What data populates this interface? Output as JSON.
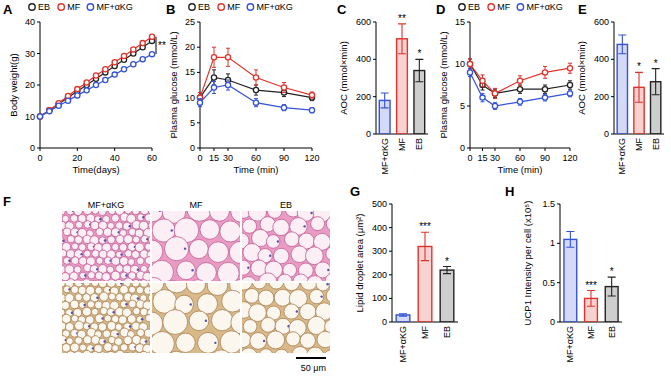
{
  "chart_data": [
    {
      "type": "line",
      "title": "A",
      "x_label": "Time(days)",
      "y_label": "Body weight(g)",
      "x": [
        0,
        5,
        10,
        15,
        20,
        25,
        30,
        35,
        40,
        45,
        50,
        55,
        60
      ],
      "series": [
        {
          "name": "EB",
          "color": "#222222",
          "marker": "circle",
          "values": [
            10,
            12,
            14,
            16,
            18,
            20,
            22,
            24,
            26,
            28,
            30,
            32,
            34
          ]
        },
        {
          "name": "MF",
          "color": "#e0332b",
          "marker": "circle",
          "values": [
            10,
            12,
            14.2,
            16.5,
            18.7,
            20.8,
            23,
            25,
            27.2,
            29.2,
            31.3,
            33.3,
            35.3
          ]
        },
        {
          "name": "MF+αKG",
          "color": "#3553d6",
          "marker": "circle",
          "values": [
            10,
            11.7,
            13.4,
            15,
            16.7,
            18.3,
            20,
            21.6,
            23.3,
            25,
            26.6,
            28.2,
            29.8
          ]
        }
      ],
      "xlim": [
        0,
        60
      ],
      "xticks": [
        0,
        20,
        40,
        60
      ],
      "ylim": [
        0,
        40
      ],
      "yticks": [
        0,
        10,
        20,
        30,
        40
      ],
      "grid": false,
      "legend": "top",
      "annotation": "**"
    },
    {
      "type": "line",
      "title": "B",
      "x_label": "Time (min)",
      "y_label": "Plasma glucose (mmol/L)",
      "x": [
        0,
        15,
        30,
        60,
        90,
        120
      ],
      "series": [
        {
          "name": "EB",
          "color": "#222222",
          "marker": "circle",
          "values": [
            10,
            14,
            13.5,
            11.5,
            11,
            10
          ],
          "errors": [
            1,
            1.5,
            1.2,
            1,
            0.8,
            0.6
          ]
        },
        {
          "name": "MF",
          "color": "#e0332b",
          "marker": "circle",
          "values": [
            10,
            18,
            18,
            14,
            12,
            10.5
          ],
          "errors": [
            1,
            2,
            1.8,
            1.5,
            1,
            0.6
          ]
        },
        {
          "name": "MF+αKG",
          "color": "#3553d6",
          "marker": "circle",
          "values": [
            9,
            12,
            12.5,
            9,
            8,
            7.5
          ],
          "errors": [
            0.8,
            1.2,
            1,
            0.8,
            0.6,
            0.5
          ]
        }
      ],
      "xlim": [
        0,
        120
      ],
      "xticks": [
        0,
        15,
        30,
        60,
        90,
        120
      ],
      "ylim": [
        0,
        25
      ],
      "yticks": [
        0,
        5,
        10,
        15,
        20,
        25
      ],
      "grid": false,
      "legend": "top"
    },
    {
      "type": "bar",
      "title": "C",
      "y_label": "AOC (mmol×min)",
      "categories": [
        "MF+αKG",
        "MF",
        "EB"
      ],
      "values": [
        180,
        510,
        340
      ],
      "errors": [
        40,
        80,
        60
      ],
      "colors": [
        "#3553d6",
        "#e0332b",
        "#222222"
      ],
      "annotations": [
        null,
        "**",
        "*"
      ],
      "ylim": [
        0,
        600
      ],
      "yticks": [
        0,
        200,
        400,
        600
      ],
      "grid": false
    },
    {
      "type": "line",
      "title": "D",
      "x_label": "Time (min)",
      "y_label": "Plasma glucose (mmol/L)",
      "x": [
        0,
        15,
        30,
        60,
        90,
        120
      ],
      "series": [
        {
          "name": "EB",
          "color": "#222222",
          "marker": "circle",
          "values": [
            10,
            7.5,
            6.5,
            7,
            7,
            7.5
          ],
          "errors": [
            0.6,
            0.6,
            0.5,
            0.5,
            0.5,
            0.5
          ]
        },
        {
          "name": "MF",
          "color": "#e0332b",
          "marker": "circle",
          "values": [
            10,
            8,
            6.5,
            8,
            9,
            9.5
          ],
          "errors": [
            0.6,
            0.7,
            0.6,
            0.6,
            0.7,
            0.6
          ]
        },
        {
          "name": "MF+αKG",
          "color": "#3553d6",
          "marker": "circle",
          "values": [
            9,
            6,
            5,
            5.5,
            6,
            6.5
          ],
          "errors": [
            0.5,
            0.5,
            0.4,
            0.4,
            0.4,
            0.4
          ]
        }
      ],
      "xlim": [
        0,
        120
      ],
      "xticks": [
        0,
        15,
        30,
        60,
        90,
        120
      ],
      "ylim": [
        0,
        15
      ],
      "yticks": [
        0,
        5,
        10,
        15
      ],
      "grid": false,
      "legend": "top"
    },
    {
      "type": "bar",
      "title": "E",
      "y_label": "AOC (mmol×min)",
      "categories": [
        "MF+αKG",
        "MF",
        "EB"
      ],
      "values": [
        480,
        250,
        280
      ],
      "errors": [
        50,
        80,
        70
      ],
      "colors": [
        "#3553d6",
        "#e0332b",
        "#222222"
      ],
      "annotations": [
        null,
        "*",
        "*"
      ],
      "ylim": [
        0,
        600
      ],
      "yticks": [
        0,
        200,
        400,
        600
      ],
      "grid": false
    },
    {
      "type": "bar",
      "title": "G",
      "y_label": "Lipid droplet area (μm²)",
      "categories": [
        "MF+αKG",
        "MF",
        "EB"
      ],
      "values": [
        30,
        320,
        220
      ],
      "errors": [
        5,
        60,
        15
      ],
      "colors": [
        "#3553d6",
        "#e0332b",
        "#222222"
      ],
      "annotations": [
        null,
        "***",
        "*"
      ],
      "ylim": [
        0,
        500
      ],
      "yticks": [
        0,
        100,
        200,
        300,
        400,
        500
      ],
      "grid": false
    },
    {
      "type": "bar",
      "title": "H",
      "y_label": "UCP1 Intensity per cell (x10⁵)",
      "categories": [
        "MF+αKG",
        "MF",
        "EB"
      ],
      "values": [
        1.05,
        0.3,
        0.45
      ],
      "errors": [
        0.1,
        0.1,
        0.12
      ],
      "colors": [
        "#3553d6",
        "#e0332b",
        "#222222"
      ],
      "annotations": [
        null,
        "***",
        "*"
      ],
      "ylim": [
        0,
        1.5
      ],
      "yticks": [
        0,
        0.5,
        1,
        1.5
      ],
      "grid": false
    }
  ],
  "image_panel": {
    "title": "F",
    "columns": [
      "MF+αKG",
      "MF",
      "EB"
    ],
    "scale_bar": "50 μm"
  }
}
